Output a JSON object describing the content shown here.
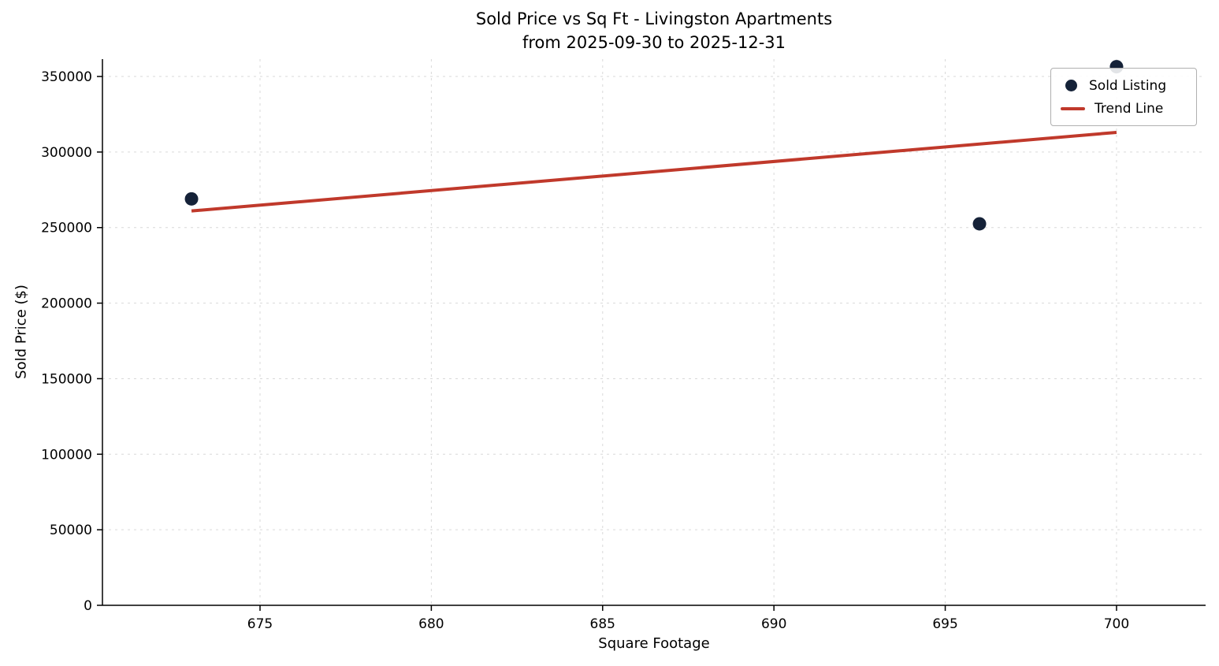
{
  "chart_data": {
    "type": "scatter",
    "title": "Sold Price vs Sq Ft - Livingston Apartments",
    "subtitle": "from 2025-09-30 to 2025-12-31",
    "xlabel": "Square Footage",
    "ylabel": "Sold Price ($)",
    "xlim": [
      670.4,
      702.6
    ],
    "ylim": [
      0,
      361500
    ],
    "xticks": [
      675,
      680,
      685,
      690,
      695,
      700
    ],
    "yticks": [
      0,
      50000,
      100000,
      150000,
      200000,
      250000,
      300000,
      350000
    ],
    "grid": true,
    "series": [
      {
        "name": "Sold Listing",
        "kind": "scatter",
        "color": "#152238",
        "points": [
          {
            "x": 673,
            "y": 269000
          },
          {
            "x": 696,
            "y": 252500
          },
          {
            "x": 700,
            "y": 356500
          }
        ]
      },
      {
        "name": "Trend Line",
        "kind": "line",
        "color": "#c0392b",
        "points": [
          {
            "x": 673,
            "y": 261000
          },
          {
            "x": 700,
            "y": 313000
          }
        ]
      }
    ],
    "legend": {
      "position": "upper right",
      "entries": [
        {
          "label": "Sold Listing",
          "marker": "dot",
          "color": "#152238"
        },
        {
          "label": "Trend Line",
          "marker": "line",
          "color": "#c0392b"
        }
      ]
    },
    "colors": {
      "grid": "#d9d9d9",
      "axis": "#000000",
      "tick_label": "#000000",
      "background": "#ffffff"
    }
  }
}
